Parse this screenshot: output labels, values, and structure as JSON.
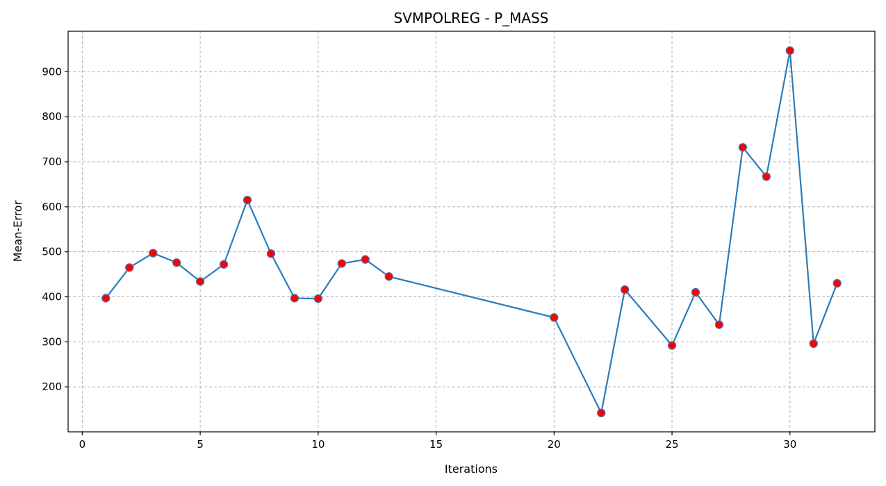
{
  "chart_data": {
    "type": "line",
    "title": "SVMPOLREG - P_MASS",
    "xlabel": "Iterations",
    "ylabel": "Mean-Error",
    "xlim": [
      -0.6,
      33.6
    ],
    "ylim": [
      100,
      990
    ],
    "xticks": [
      0,
      5,
      10,
      15,
      20,
      25,
      30
    ],
    "yticks": [
      200,
      300,
      400,
      500,
      600,
      700,
      800,
      900
    ],
    "grid": true,
    "colors": {
      "line": "#2b7bb9",
      "marker_fill": "#ff0000",
      "marker_edge": "#4a6fa5"
    },
    "series": [
      {
        "x": [
          1,
          2,
          3,
          4,
          5,
          6,
          7,
          8,
          9,
          10,
          11,
          12,
          13,
          20,
          22,
          23,
          25,
          26,
          27,
          28,
          29,
          30,
          31,
          32
        ],
        "y": [
          397,
          465,
          497,
          476,
          434,
          472,
          615,
          496,
          397,
          396,
          474,
          483,
          445,
          354,
          142,
          416,
          292,
          410,
          338,
          732,
          667,
          947,
          296,
          430
        ]
      }
    ]
  }
}
